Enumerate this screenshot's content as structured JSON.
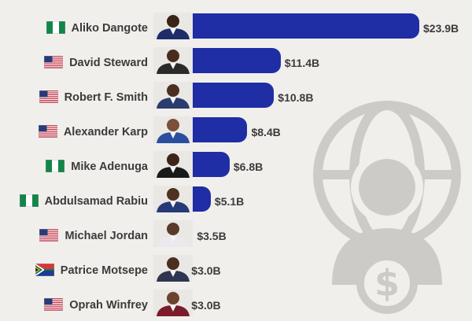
{
  "chart_data": {
    "type": "bar",
    "orientation": "horizontal",
    "unit": "B",
    "value_prefix": "$",
    "categories": [
      "Aliko Dangote",
      "David Steward",
      "Robert F. Smith",
      "Alexander Karp",
      "Mike Adenuga",
      "Abdulsamad Rabiu",
      "Michael Jordan",
      "Patrice Motsepe",
      "Oprah Winfrey"
    ],
    "values": [
      23.9,
      11.4,
      10.8,
      8.4,
      6.8,
      5.1,
      3.5,
      3.0,
      3.0
    ],
    "value_labels": [
      "$23.9B",
      "$11.4B",
      "$10.8B",
      "$8.4B",
      "$6.8B",
      "$5.1B",
      "$3.5B",
      "$3.0B",
      "$3.0B"
    ],
    "countries": [
      "nigeria",
      "usa",
      "usa",
      "usa",
      "nigeria",
      "nigeria",
      "usa",
      "south-africa",
      "usa"
    ],
    "xlim": [
      0,
      23.9
    ],
    "grid": false,
    "bar_color": "#1f2ea4"
  },
  "colors": {
    "background": "#f1efec",
    "bar": "#1f2ea4",
    "text": "#3b3b3b",
    "watermark": "#cdcbc8"
  },
  "icons": {
    "watermark": "globe-person-dollar-icon",
    "flags": "country-flag-icon",
    "photos": "person-photo-icon"
  }
}
